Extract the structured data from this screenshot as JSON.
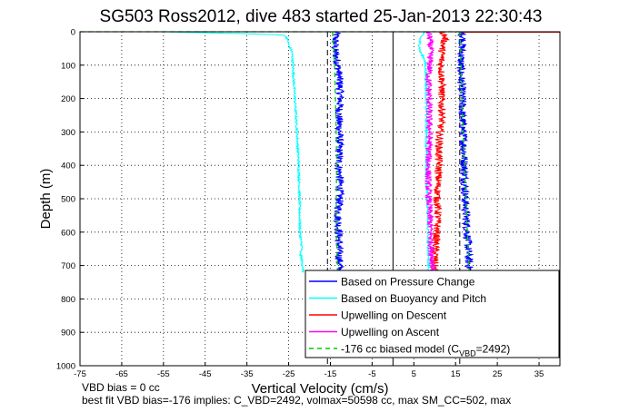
{
  "chart_data": {
    "type": "line",
    "title": "SG503 Ross2012, dive 483 started 25-Jan-2013 22:30:43",
    "xlabel": "Vertical Velocity (cm/s)",
    "ylabel": "Depth (m)",
    "xlim": [
      -75,
      40
    ],
    "ylim": [
      1000,
      0
    ],
    "y_reversed": true,
    "grid": "dotted",
    "xticks": [
      "-75",
      "-65",
      "-55",
      "-45",
      "-35",
      "-25",
      "-15",
      "-5",
      "5",
      "15",
      "25",
      "35"
    ],
    "xtick_values": [
      -75,
      -65,
      -55,
      -45,
      -35,
      -25,
      -15,
      -5,
      5,
      15,
      25,
      35
    ],
    "yticks": [
      "0",
      "100",
      "200",
      "300",
      "400",
      "500",
      "600",
      "700",
      "800",
      "900",
      "1000"
    ],
    "ytick_values": [
      0,
      100,
      200,
      300,
      400,
      500,
      600,
      700,
      800,
      900,
      1000
    ],
    "legend_position": "bottom-right",
    "legend": [
      {
        "label": "Based on Pressure Change",
        "color": "#0000ff",
        "dash": "none"
      },
      {
        "label": "Based on Buoyancy and Pitch",
        "color": "#00ffff",
        "dash": "none"
      },
      {
        "label": "Upwelling on Descent",
        "color": "#ff0000",
        "dash": "none"
      },
      {
        "label": "Upwelling on Ascent",
        "color": "#ff00ff",
        "dash": "none"
      },
      {
        "label_main": "-176 cc biased model (C",
        "label_sub": "VBD",
        "label_end": "=2492)",
        "color": "#00cc00",
        "dash": "5,4"
      }
    ],
    "reference_lines": [
      {
        "x": 0,
        "color": "#000000",
        "dash": "none"
      },
      {
        "x": -15.7,
        "color": "#000000",
        "dash": "6,4"
      },
      {
        "x": 16,
        "color": "#000000",
        "dash": "6,4"
      }
    ],
    "series": [
      {
        "name": "Based on Pressure Change",
        "color": "#0000ff",
        "jitter": 1.0,
        "depths": [
          0,
          20,
          50,
          80,
          100,
          150,
          200,
          250,
          300,
          350,
          400,
          450,
          500,
          550,
          600,
          650,
          700,
          720
        ],
        "values": [
          -13.5,
          -13.8,
          -14.0,
          -13.5,
          -13.2,
          -12.8,
          -12.6,
          -13.0,
          -12.8,
          -12.9,
          -13.0,
          -12.7,
          -12.8,
          -13.2,
          -13.0,
          -13.0,
          -12.8,
          -12.5
        ]
      },
      {
        "name": "Based on Pressure Change",
        "color": "#0000ff",
        "jitter": 1.0,
        "depths": [
          0,
          20,
          50,
          100,
          150,
          200,
          250,
          300,
          350,
          400,
          450,
          500,
          550,
          600,
          650,
          700,
          720
        ],
        "values": [
          16.5,
          16.8,
          16.5,
          16.2,
          16.4,
          16.6,
          16.6,
          16.8,
          17.0,
          17.1,
          17.2,
          17.3,
          17.5,
          17.8,
          18.0,
          18.2,
          18.4
        ]
      },
      {
        "name": "Based on Buoyancy and Pitch",
        "color": "#00ffff",
        "jitter": 0.25,
        "depths": [
          0,
          3,
          6,
          10,
          20,
          40,
          60,
          100,
          200,
          300,
          400,
          500,
          600,
          650,
          660,
          680,
          720
        ],
        "values": [
          -55,
          -45,
          -35,
          -26,
          -25.3,
          -25,
          -24.2,
          -24.0,
          -23.5,
          -23.0,
          -22.6,
          -22.4,
          -22.3,
          -21.8,
          -22.3,
          -21.9,
          -21.5
        ]
      },
      {
        "name": "Based on Buoyancy and Pitch",
        "color": "#00ffff",
        "jitter": 0.25,
        "depths": [
          0,
          10,
          20,
          40,
          60,
          80,
          100,
          200,
          300,
          400,
          500,
          600,
          700,
          720
        ],
        "values": [
          7.5,
          7.0,
          6.5,
          6.3,
          6.5,
          7.5,
          7.8,
          8.0,
          8.0,
          8.0,
          8.2,
          8.4,
          8.5,
          8.5
        ]
      },
      {
        "name": "Upwelling on Descent",
        "color": "#ff0000",
        "jitter": 0.9,
        "depths": [
          0,
          20,
          50,
          100,
          150,
          200,
          250,
          300,
          350,
          400,
          450,
          500,
          550,
          600,
          650,
          700,
          720
        ],
        "values": [
          12.0,
          12.5,
          11.8,
          11.5,
          11.8,
          11.6,
          11.8,
          11.2,
          11.0,
          11.0,
          10.8,
          10.6,
          10.8,
          10.5,
          10.2,
          10.0,
          10.0
        ]
      },
      {
        "name": "Upwelling on Ascent",
        "color": "#ff00ff",
        "jitter": 0.8,
        "depths": [
          0,
          20,
          50,
          100,
          150,
          200,
          250,
          300,
          350,
          400,
          450,
          500,
          550,
          600,
          650,
          700,
          720
        ],
        "values": [
          8.5,
          8.8,
          9.0,
          8.8,
          8.5,
          8.7,
          8.6,
          8.8,
          8.6,
          8.5,
          8.4,
          8.6,
          8.8,
          9.0,
          9.2,
          9.5,
          9.5
        ]
      },
      {
        "name": "Upwelling on Descent",
        "color": "#ff0000",
        "jitter": 0,
        "depths": [
          0,
          0,
          0
        ],
        "values": [
          16,
          28,
          40
        ]
      }
    ],
    "model_lines": [
      {
        "color": "#00cc00",
        "dash": "5,4",
        "depths": [
          0,
          50,
          100,
          200,
          300,
          400,
          500,
          600,
          700,
          720
        ],
        "values": [
          -14.5,
          -14.2,
          -14.0,
          -13.8,
          -13.6,
          -13.5,
          -13.6,
          -13.6,
          -13.3,
          -13.0
        ]
      },
      {
        "color": "#00cc00",
        "dash": "5,4",
        "depths": [
          0,
          50,
          100,
          200,
          300,
          400,
          500,
          600,
          700,
          720
        ],
        "values": [
          16.0,
          16.2,
          16.3,
          16.5,
          16.8,
          17.1,
          17.5,
          17.8,
          18.2,
          18.3
        ]
      },
      {
        "color": "#00cc00",
        "dash": "5,4",
        "depths": [
          0,
          0
        ],
        "values": [
          -75,
          16
        ]
      }
    ]
  },
  "notes": {
    "line1": "VBD bias = 0 cc",
    "line2": "best fit VBD bias=-176 implies: C_VBD=2492, volmax=50598 cc, max SM_CC=502, max"
  }
}
